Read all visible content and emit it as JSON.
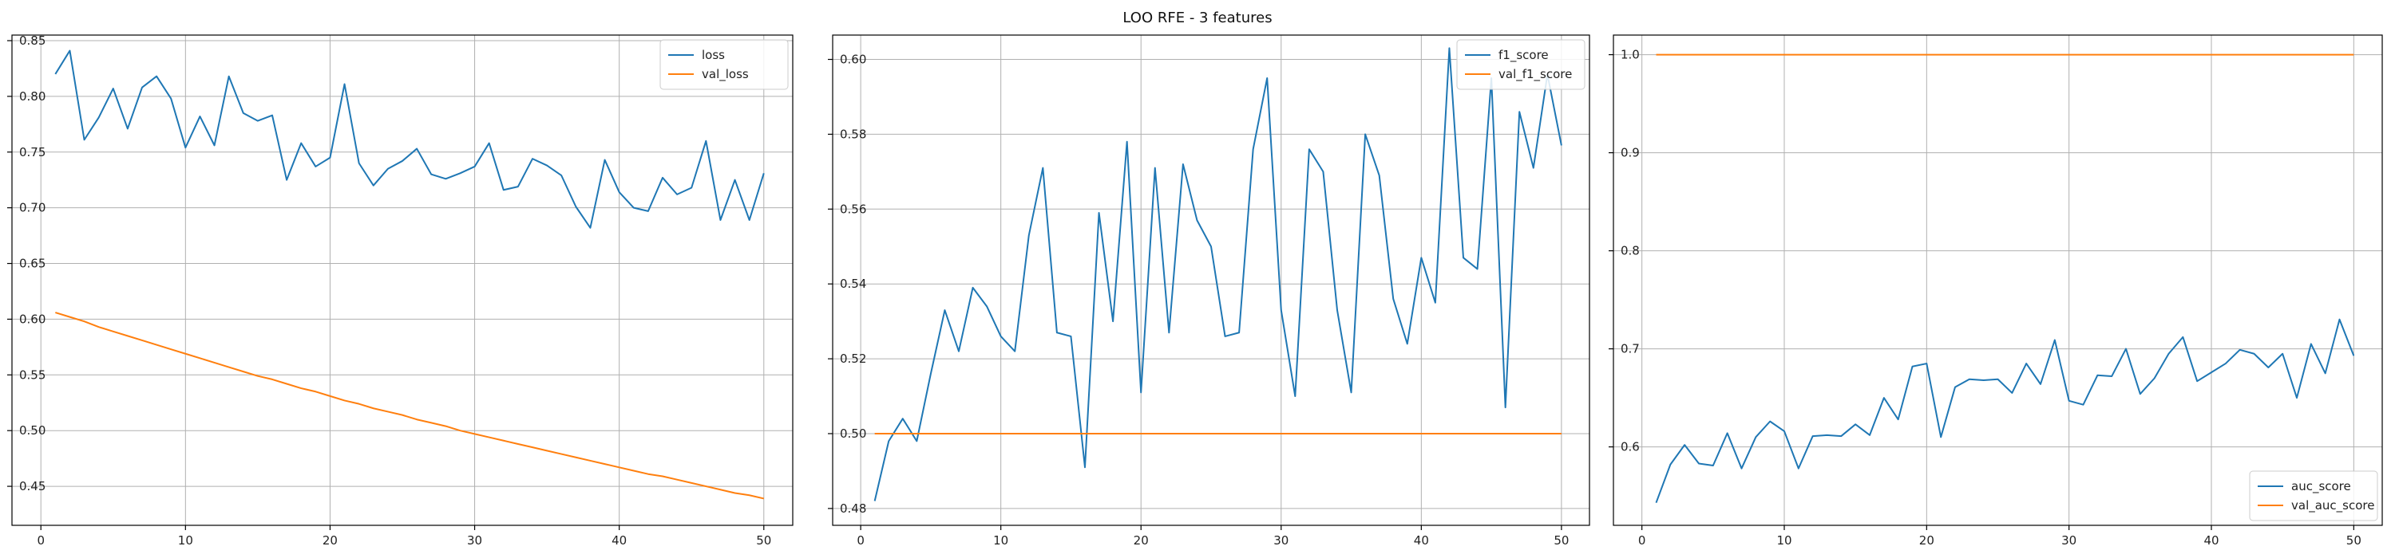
{
  "title": "LOO RFE - 3 features",
  "colors": {
    "blue": "#1f77b4",
    "orange": "#ff7f0e",
    "grid": "#b0b0b0",
    "axis": "#000000"
  },
  "chart_data": [
    {
      "type": "line",
      "xlim": [
        -2,
        52
      ],
      "ylim": [
        0.415,
        0.855
      ],
      "xticks": [
        0,
        10,
        20,
        30,
        40,
        50
      ],
      "yticks": [
        0.45,
        0.5,
        0.55,
        0.6,
        0.65,
        0.7,
        0.75,
        0.8,
        0.85
      ],
      "ytick_labels": [
        "0.45",
        "0.50",
        "0.55",
        "0.60",
        "0.65",
        "0.70",
        "0.75",
        "0.80",
        "0.85"
      ],
      "grid": true,
      "legend": "top-right",
      "x_start": 1,
      "series": [
        {
          "name": "loss",
          "color": "#1f77b4",
          "values": [
            0.82,
            0.841,
            0.761,
            0.781,
            0.807,
            0.771,
            0.808,
            0.818,
            0.798,
            0.754,
            0.782,
            0.756,
            0.818,
            0.785,
            0.778,
            0.783,
            0.725,
            0.758,
            0.737,
            0.745,
            0.811,
            0.74,
            0.72,
            0.735,
            0.742,
            0.753,
            0.73,
            0.726,
            0.731,
            0.737,
            0.758,
            0.716,
            0.719,
            0.744,
            0.738,
            0.729,
            0.701,
            0.682,
            0.743,
            0.714,
            0.7,
            0.697,
            0.727,
            0.712,
            0.718,
            0.76,
            0.689,
            0.725,
            0.689,
            0.731
          ]
        },
        {
          "name": "val_loss",
          "color": "#ff7f0e",
          "values": [
            0.606,
            0.602,
            0.598,
            0.593,
            0.589,
            0.585,
            0.581,
            0.577,
            0.573,
            0.569,
            0.565,
            0.561,
            0.557,
            0.553,
            0.549,
            0.546,
            0.542,
            0.538,
            0.535,
            0.531,
            0.527,
            0.524,
            0.52,
            0.517,
            0.514,
            0.51,
            0.507,
            0.504,
            0.5,
            0.497,
            0.494,
            0.491,
            0.488,
            0.485,
            0.482,
            0.479,
            0.476,
            0.473,
            0.47,
            0.467,
            0.464,
            0.461,
            0.459,
            0.456,
            0.453,
            0.45,
            0.447,
            0.444,
            0.442,
            0.439
          ]
        }
      ]
    },
    {
      "type": "line",
      "xlim": [
        -2,
        52
      ],
      "ylim": [
        0.4755,
        0.6065
      ],
      "xticks": [
        0,
        10,
        20,
        30,
        40,
        50
      ],
      "yticks": [
        0.48,
        0.5,
        0.52,
        0.54,
        0.56,
        0.58,
        0.6
      ],
      "ytick_labels": [
        "0.48",
        "0.50",
        "0.52",
        "0.54",
        "0.56",
        "0.58",
        "0.60"
      ],
      "grid": true,
      "legend": "top-right",
      "x_start": 1,
      "series": [
        {
          "name": "f1_score",
          "color": "#1f77b4",
          "values": [
            0.482,
            0.498,
            0.504,
            0.498,
            0.516,
            0.533,
            0.522,
            0.539,
            0.534,
            0.526,
            0.522,
            0.553,
            0.571,
            0.527,
            0.526,
            0.491,
            0.559,
            0.53,
            0.578,
            0.511,
            0.571,
            0.527,
            0.572,
            0.557,
            0.55,
            0.526,
            0.527,
            0.576,
            0.595,
            0.533,
            0.51,
            0.576,
            0.57,
            0.533,
            0.511,
            0.58,
            0.569,
            0.536,
            0.524,
            0.547,
            0.535,
            0.603,
            0.547,
            0.544,
            0.595,
            0.507,
            0.586,
            0.571,
            0.596,
            0.577
          ]
        },
        {
          "name": "val_f1_score",
          "color": "#ff7f0e",
          "values": [
            0.5,
            0.5,
            0.5,
            0.5,
            0.5,
            0.5,
            0.5,
            0.5,
            0.5,
            0.5,
            0.5,
            0.5,
            0.5,
            0.5,
            0.5,
            0.5,
            0.5,
            0.5,
            0.5,
            0.5,
            0.5,
            0.5,
            0.5,
            0.5,
            0.5,
            0.5,
            0.5,
            0.5,
            0.5,
            0.5,
            0.5,
            0.5,
            0.5,
            0.5,
            0.5,
            0.5,
            0.5,
            0.5,
            0.5,
            0.5,
            0.5,
            0.5,
            0.5,
            0.5,
            0.5,
            0.5,
            0.5,
            0.5,
            0.5,
            0.5
          ]
        }
      ]
    },
    {
      "type": "line",
      "xlim": [
        -2,
        52
      ],
      "ylim": [
        0.52,
        1.02
      ],
      "xticks": [
        0,
        10,
        20,
        30,
        40,
        50
      ],
      "yticks": [
        0.6,
        0.7,
        0.8,
        0.9,
        1.0
      ],
      "ytick_labels": [
        "0.6",
        "0.7",
        "0.8",
        "0.9",
        "1.0"
      ],
      "grid": true,
      "legend": "bottom-right",
      "x_start": 1,
      "series": [
        {
          "name": "auc_score",
          "color": "#1f77b4",
          "values": [
            0.543,
            0.582,
            0.602,
            0.583,
            0.581,
            0.614,
            0.578,
            0.61,
            0.626,
            0.616,
            0.578,
            0.611,
            0.612,
            0.611,
            0.623,
            0.612,
            0.65,
            0.628,
            0.682,
            0.685,
            0.61,
            0.661,
            0.669,
            0.668,
            0.669,
            0.655,
            0.685,
            0.664,
            0.709,
            0.647,
            0.643,
            0.673,
            0.672,
            0.7,
            0.654,
            0.67,
            0.695,
            0.712,
            0.667,
            0.676,
            0.685,
            0.699,
            0.695,
            0.681,
            0.695,
            0.65,
            0.705,
            0.675,
            0.73,
            0.693
          ]
        },
        {
          "name": "val_auc_score",
          "color": "#ff7f0e",
          "values": [
            1.0,
            1.0,
            1.0,
            1.0,
            1.0,
            1.0,
            1.0,
            1.0,
            1.0,
            1.0,
            1.0,
            1.0,
            1.0,
            1.0,
            1.0,
            1.0,
            1.0,
            1.0,
            1.0,
            1.0,
            1.0,
            1.0,
            1.0,
            1.0,
            1.0,
            1.0,
            1.0,
            1.0,
            1.0,
            1.0,
            1.0,
            1.0,
            1.0,
            1.0,
            1.0,
            1.0,
            1.0,
            1.0,
            1.0,
            1.0,
            1.0,
            1.0,
            1.0,
            1.0,
            1.0,
            1.0,
            1.0,
            1.0,
            1.0,
            1.0
          ]
        }
      ]
    }
  ]
}
